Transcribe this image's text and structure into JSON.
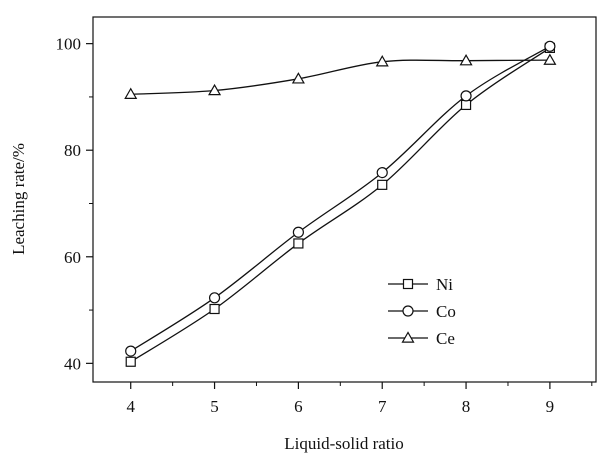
{
  "chart_data": {
    "type": "line",
    "title": "",
    "xlabel": "Liquid-solid ratio",
    "ylabel": "Leaching rate/%",
    "x": [
      4,
      5,
      6,
      7,
      8,
      9
    ],
    "xlim": [
      3.55,
      9.55
    ],
    "ylim": [
      36.5,
      105
    ],
    "xticks": [
      "4",
      "5",
      "6",
      "7",
      "8",
      "9"
    ],
    "yticks": [
      "40",
      "60",
      "80",
      "100"
    ],
    "ytick_values": [
      40,
      60,
      80,
      100
    ],
    "grid": false,
    "legend_position": "center-right",
    "series": [
      {
        "name": "Ni",
        "marker": "square",
        "values": [
          40.3,
          50.2,
          62.5,
          73.5,
          88.5,
          99.2
        ]
      },
      {
        "name": "Co",
        "marker": "circle",
        "values": [
          42.3,
          52.3,
          64.6,
          75.8,
          90.2,
          99.5
        ]
      },
      {
        "name": "Ce",
        "marker": "triangle",
        "values": [
          90.5,
          91.2,
          93.4,
          96.6,
          96.8,
          96.9
        ]
      }
    ],
    "colors": {
      "line": "#111111",
      "marker_fill": "#ffffff"
    }
  }
}
